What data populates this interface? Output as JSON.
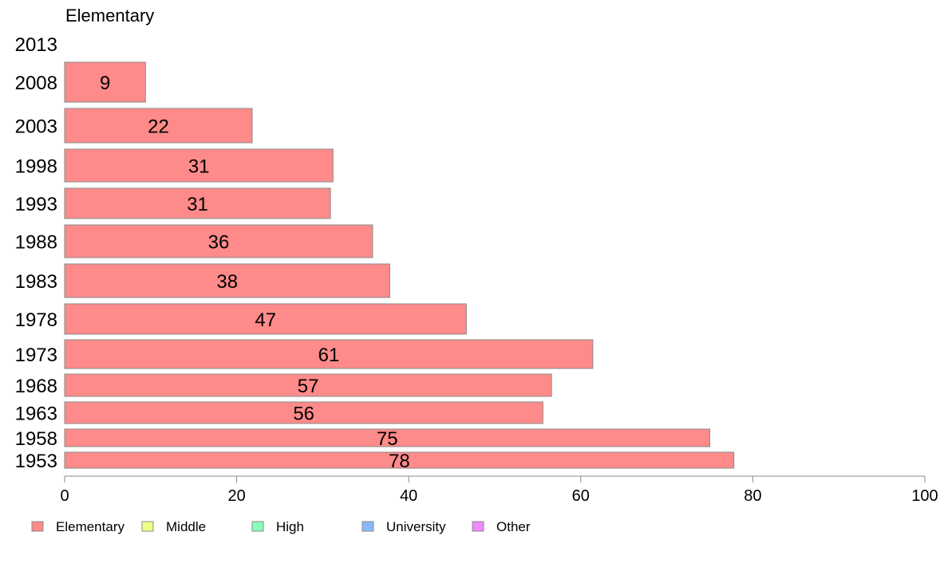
{
  "chart_data": {
    "type": "bar",
    "orientation": "horizontal",
    "title": "Elementary",
    "categories": [
      "2013",
      "2008",
      "2003",
      "1998",
      "1993",
      "1988",
      "1983",
      "1978",
      "1973",
      "1968",
      "1963",
      "1958",
      "1953"
    ],
    "values": [
      null,
      9.4,
      21.8,
      31.2,
      30.9,
      35.8,
      37.8,
      46.7,
      61.4,
      56.6,
      55.6,
      75.0,
      77.8
    ],
    "value_labels": [
      "",
      "9",
      "22",
      "31",
      "31",
      "36",
      "38",
      "47",
      "61",
      "57",
      "56",
      "75",
      "78"
    ],
    "series": [
      {
        "name": "Elementary",
        "color": "#ff8a8a"
      }
    ],
    "xlim": [
      0,
      100
    ],
    "x_ticks": [
      0,
      20,
      40,
      60,
      80,
      100
    ],
    "x_tick_labels": [
      "0",
      "20",
      "40",
      "60",
      "80",
      "100"
    ],
    "grid": false,
    "legend_position": "bottom-left",
    "legend": [
      {
        "label": "Elementary",
        "color": "#ff8a8a"
      },
      {
        "label": "Middle",
        "color": "#efff8a"
      },
      {
        "label": "High",
        "color": "#8affb9"
      },
      {
        "label": "University",
        "color": "#8ab8ff"
      },
      {
        "label": "Other",
        "color": "#f08aff"
      }
    ]
  }
}
